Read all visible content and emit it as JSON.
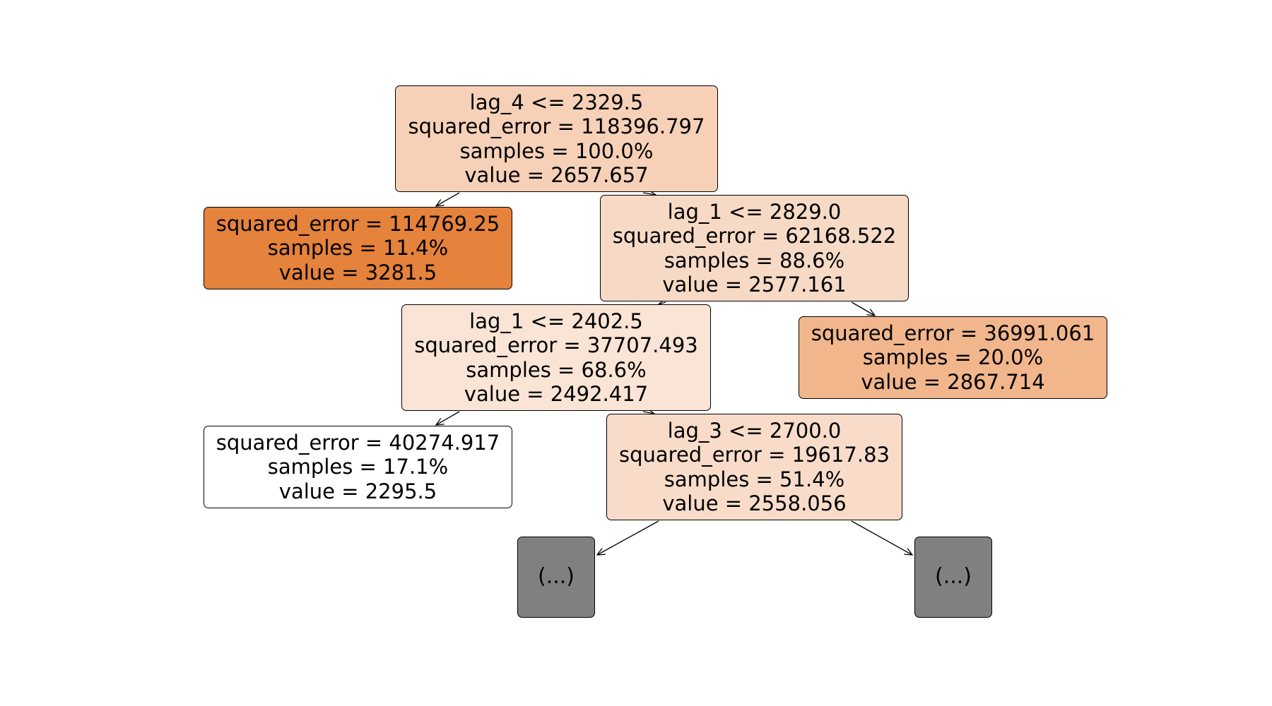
{
  "tree": {
    "nodes": [
      {
        "id": "n0",
        "lines": [
          "lag_4 <= 2329.5",
          "squared_error = 118396.797",
          "samples = 100.0%",
          "value = 2657.657"
        ],
        "fill": "#f6d1b7"
      },
      {
        "id": "n1",
        "lines": [
          "squared_error = 114769.25",
          "samples = 11.4%",
          "value = 3281.5"
        ],
        "fill": "#e5823b"
      },
      {
        "id": "n2",
        "lines": [
          "lag_1 <= 2829.0",
          "squared_error = 62168.522",
          "samples = 88.6%",
          "value = 2577.161"
        ],
        "fill": "#f7dac5"
      },
      {
        "id": "n3",
        "lines": [
          "lag_1 <= 2402.5",
          "squared_error = 37707.493",
          "samples = 68.6%",
          "value = 2492.417"
        ],
        "fill": "#f9e4d5"
      },
      {
        "id": "n4",
        "lines": [
          "squared_error = 36991.061",
          "samples = 20.0%",
          "value = 2867.714"
        ],
        "fill": "#f1b68c"
      },
      {
        "id": "n5",
        "lines": [
          "squared_error = 40274.917",
          "samples = 17.1%",
          "value = 2295.5"
        ],
        "fill": "#ffffff"
      },
      {
        "id": "n6",
        "lines": [
          "lag_3 <= 2700.0",
          "squared_error = 19617.83",
          "samples = 51.4%",
          "value = 2558.056"
        ],
        "fill": "#f8dcc9"
      },
      {
        "id": "n7",
        "lines": [
          "(...)"
        ],
        "fill": "#808080"
      },
      {
        "id": "n8",
        "lines": [
          "(...)"
        ],
        "fill": "#808080"
      }
    ],
    "edges": [
      {
        "from": "n0",
        "to": "n1"
      },
      {
        "from": "n0",
        "to": "n2"
      },
      {
        "from": "n2",
        "to": "n3"
      },
      {
        "from": "n2",
        "to": "n4"
      },
      {
        "from": "n3",
        "to": "n5"
      },
      {
        "from": "n3",
        "to": "n6"
      },
      {
        "from": "n6",
        "to": "n7"
      },
      {
        "from": "n6",
        "to": "n8"
      }
    ]
  }
}
